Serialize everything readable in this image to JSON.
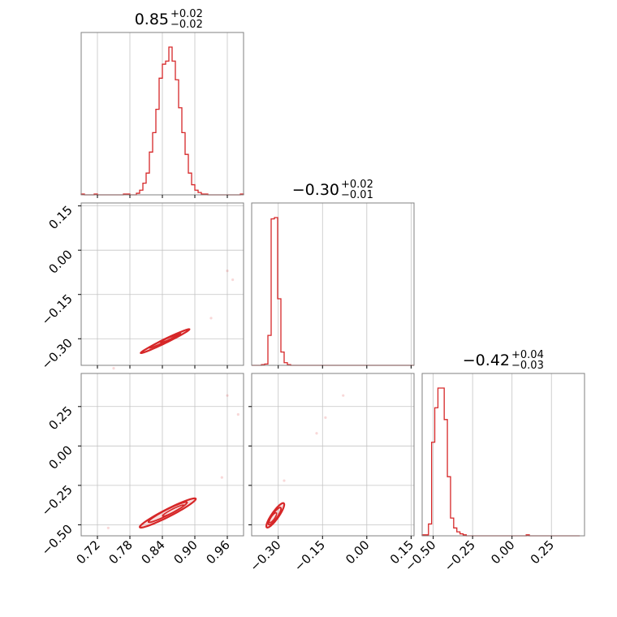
{
  "chart_data": {
    "type": "corner",
    "line_color": "#d62728",
    "grid": true,
    "parameters": [
      {
        "title": {
          "value": "0.85",
          "plus": "+0.02",
          "minus": "−0.02"
        },
        "axis_range": [
          0.69,
          0.99
        ],
        "ticks": [
          {
            "value": 0.72,
            "label": "0.72"
          },
          {
            "value": 0.78,
            "label": "0.78"
          },
          {
            "value": 0.84,
            "label": "0.84"
          },
          {
            "value": 0.9,
            "label": "0.90"
          },
          {
            "value": 0.96,
            "label": "0.96"
          }
        ]
      },
      {
        "title": {
          "value": "−0.30",
          "plus": "+0.02",
          "minus": "−0.01"
        },
        "axis_range": [
          -0.39,
          0.16
        ],
        "ticks": [
          {
            "value": -0.3,
            "label": "−0.30"
          },
          {
            "value": -0.15,
            "label": "−0.15"
          },
          {
            "value": 0.0,
            "label": "0.00"
          },
          {
            "value": 0.15,
            "label": "0.15"
          }
        ]
      },
      {
        "title": {
          "value": "−0.42",
          "plus": "+0.04",
          "minus": "−0.03"
        },
        "axis_range": [
          -0.57,
          0.46
        ],
        "ticks": [
          {
            "value": -0.5,
            "label": "−0.50"
          },
          {
            "value": -0.25,
            "label": "−0.25"
          },
          {
            "value": 0.0,
            "label": "0.00"
          },
          {
            "value": 0.25,
            "label": "0.25"
          }
        ]
      }
    ],
    "histograms": [
      {
        "parameter": 0,
        "bin_edges": [
          0.69,
          0.696,
          0.702,
          0.708,
          0.714,
          0.72,
          0.726,
          0.732,
          0.738,
          0.744,
          0.75,
          0.756,
          0.762,
          0.768,
          0.774,
          0.78,
          0.786,
          0.792,
          0.798,
          0.804,
          0.81,
          0.816,
          0.822,
          0.828,
          0.834,
          0.84,
          0.846,
          0.852,
          0.858,
          0.864,
          0.87,
          0.876,
          0.882,
          0.888,
          0.894,
          0.9,
          0.906,
          0.912,
          0.918,
          0.924,
          0.93,
          0.936,
          0.942,
          0.948,
          0.954,
          0.96,
          0.966,
          0.972,
          0.978,
          0.984,
          0.99
        ],
        "counts": [
          1,
          0,
          0,
          0,
          1,
          0,
          0,
          0,
          0,
          0,
          0,
          0,
          0,
          1,
          1,
          0,
          0,
          2,
          6,
          15,
          28,
          55,
          80,
          110,
          150,
          168,
          172,
          190,
          172,
          148,
          112,
          80,
          52,
          28,
          13,
          6,
          3,
          1,
          1,
          0,
          0,
          0,
          0,
          0,
          0,
          0,
          0,
          0,
          0,
          1
        ]
      },
      {
        "parameter": 1,
        "bin_edges": [
          -0.39,
          -0.379,
          -0.368,
          -0.357,
          -0.346,
          -0.335,
          -0.324,
          -0.313,
          -0.302,
          -0.291,
          -0.28,
          -0.269,
          -0.258,
          -0.247,
          -0.236,
          -0.225,
          -0.214,
          -0.203,
          -0.192,
          -0.181,
          -0.17,
          -0.159,
          -0.148,
          -0.137,
          -0.126,
          -0.115,
          -0.104,
          -0.093,
          -0.082,
          -0.071,
          -0.06,
          -0.049,
          -0.038,
          -0.027,
          -0.016,
          -0.005,
          0.006,
          0.017,
          0.028,
          0.039,
          0.05,
          0.061,
          0.072,
          0.083,
          0.094,
          0.105,
          0.116,
          0.127,
          0.138,
          0.149,
          0.16
        ],
        "counts": [
          0,
          0,
          0,
          1,
          2,
          45,
          220,
          222,
          100,
          20,
          4,
          1,
          0,
          0,
          0,
          0,
          0,
          0,
          0,
          0,
          0,
          0,
          0,
          0,
          0,
          0,
          0,
          0,
          0,
          0,
          0,
          0,
          0,
          0,
          0,
          0,
          0,
          0,
          0,
          0,
          0,
          0,
          0,
          0,
          0,
          0,
          0,
          0,
          0,
          0
        ]
      },
      {
        "parameter": 2,
        "bin_edges": [
          -0.57,
          -0.55,
          -0.53,
          -0.51,
          -0.49,
          -0.47,
          -0.45,
          -0.43,
          -0.41,
          -0.39,
          -0.37,
          -0.35,
          -0.33,
          -0.31,
          -0.29,
          -0.27,
          -0.25,
          -0.23,
          -0.21,
          -0.19,
          -0.17,
          -0.15,
          -0.13,
          -0.11,
          -0.09,
          -0.07,
          -0.05,
          -0.03,
          -0.01,
          0.01,
          0.03,
          0.05,
          0.07,
          0.09,
          0.11,
          0.13,
          0.15,
          0.17,
          0.19,
          0.21,
          0.23,
          0.25,
          0.27,
          0.29,
          0.31,
          0.33,
          0.35,
          0.37,
          0.39,
          0.41,
          0.43
        ],
        "counts": [
          1,
          1,
          12,
          95,
          130,
          150,
          150,
          118,
          60,
          18,
          8,
          4,
          2,
          1,
          0,
          0,
          0,
          0,
          0,
          0,
          0,
          0,
          0,
          0,
          0,
          0,
          0,
          0,
          0,
          0,
          0,
          0,
          0,
          1,
          0,
          0,
          0,
          0,
          0,
          0,
          0,
          0,
          0,
          0,
          0,
          0,
          0,
          0,
          0,
          0
        ]
      }
    ],
    "pair_plots": [
      {
        "x_param": 0,
        "y_param": 1,
        "contours": [
          {
            "center": [
              0.845,
              -0.308
            ],
            "half_length": 0.05,
            "half_width": 0.0035,
            "angle_deg": 26
          },
          {
            "center": [
              0.845,
              -0.305
            ],
            "half_length": 0.032,
            "half_width": 0.0025,
            "angle_deg": 26
          },
          {
            "center": [
              0.855,
              -0.298
            ],
            "half_length": 0.02,
            "half_width": 0.0018,
            "angle_deg": 22
          }
        ],
        "outliers": [
          [
            0.75,
            -0.4
          ],
          [
            0.97,
            -0.1
          ],
          [
            0.96,
            -0.07
          ],
          [
            0.93,
            -0.23
          ]
        ]
      },
      {
        "x_param": 0,
        "y_param": 2,
        "contours": [
          {
            "center": [
              0.85,
              -0.425
            ],
            "half_length": 0.058,
            "half_width": 0.007,
            "angle_deg": 27
          },
          {
            "center": [
              0.85,
              -0.42
            ],
            "half_length": 0.04,
            "half_width": 0.005,
            "angle_deg": 27
          },
          {
            "center": [
              0.86,
              -0.41
            ],
            "half_length": 0.022,
            "half_width": 0.003,
            "angle_deg": 27
          }
        ],
        "outliers": [
          [
            0.96,
            0.32
          ],
          [
            0.98,
            0.2
          ],
          [
            0.95,
            -0.2
          ],
          [
            0.74,
            -0.52
          ]
        ]
      },
      {
        "x_param": 1,
        "y_param": 2,
        "contours": [
          {
            "center": [
              -0.31,
              -0.44
            ],
            "half_length": 0.05,
            "half_width": 0.012,
            "angle_deg": 55
          },
          {
            "center": [
              -0.312,
              -0.445
            ],
            "half_length": 0.035,
            "half_width": 0.009,
            "angle_deg": 55
          },
          {
            "center": [
              -0.318,
              -0.455
            ],
            "half_length": 0.02,
            "half_width": 0.006,
            "angle_deg": 55
          }
        ],
        "outliers": [
          [
            -0.08,
            0.32
          ],
          [
            -0.14,
            0.18
          ],
          [
            -0.17,
            0.08
          ],
          [
            -0.28,
            -0.22
          ]
        ]
      }
    ]
  }
}
